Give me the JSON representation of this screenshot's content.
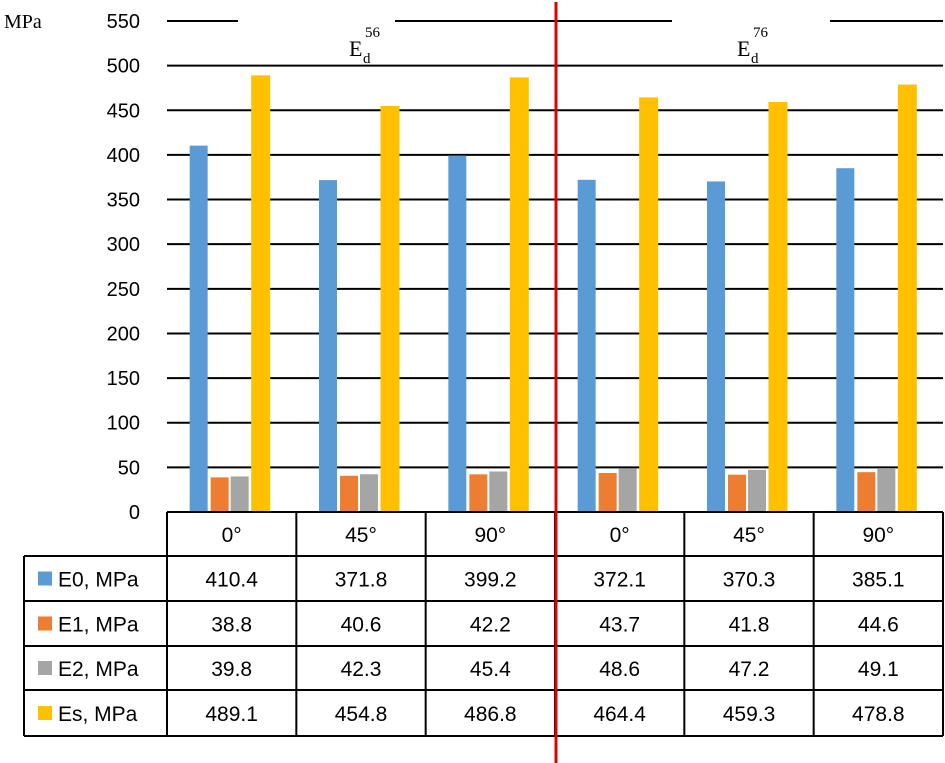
{
  "chart_data": {
    "type": "bar",
    "ylabel": "MPa",
    "ylim": [
      0,
      550
    ],
    "yticks": [
      0,
      50,
      100,
      150,
      200,
      250,
      300,
      350,
      400,
      450,
      500,
      550
    ],
    "grid": true,
    "legend": "table-left",
    "groups": [
      {
        "base": "E",
        "sub": "d",
        "sup": "56"
      },
      {
        "base": "E",
        "sub": "d",
        "sup": "76"
      }
    ],
    "categories": [
      "0°",
      "45°",
      "90°",
      "0°",
      "45°",
      "90°"
    ],
    "series": [
      {
        "name": "E0, MPa",
        "color": "#5B9BD5",
        "values": [
          410.4,
          371.8,
          399.2,
          372.1,
          370.3,
          385.1
        ],
        "labels": [
          "410.4",
          "371.8",
          "399.2",
          "372.1",
          "370.3",
          "385.1"
        ]
      },
      {
        "name": "E1, MPa",
        "color": "#ED7D31",
        "values": [
          38.8,
          40.6,
          42.2,
          43.7,
          41.8,
          44.6
        ],
        "labels": [
          "38.8",
          "40.6",
          "42.2",
          "43.7",
          "41.8",
          "44.6"
        ]
      },
      {
        "name": "E2, MPa",
        "color": "#A5A5A5",
        "values": [
          39.8,
          42.3,
          45.4,
          48.6,
          47.2,
          49.1
        ],
        "labels": [
          "39.8",
          "42.3",
          "45.4",
          "48.6",
          "47.2",
          "49.1"
        ]
      },
      {
        "name": "Es, MPa",
        "color": "#FFC000",
        "values": [
          489.1,
          454.8,
          486.8,
          464.4,
          459.3,
          478.8
        ],
        "labels": [
          "489.1",
          "454.8",
          "486.8",
          "464.4",
          "459.3",
          "478.8"
        ]
      }
    ],
    "divider_color": "#E00000"
  }
}
